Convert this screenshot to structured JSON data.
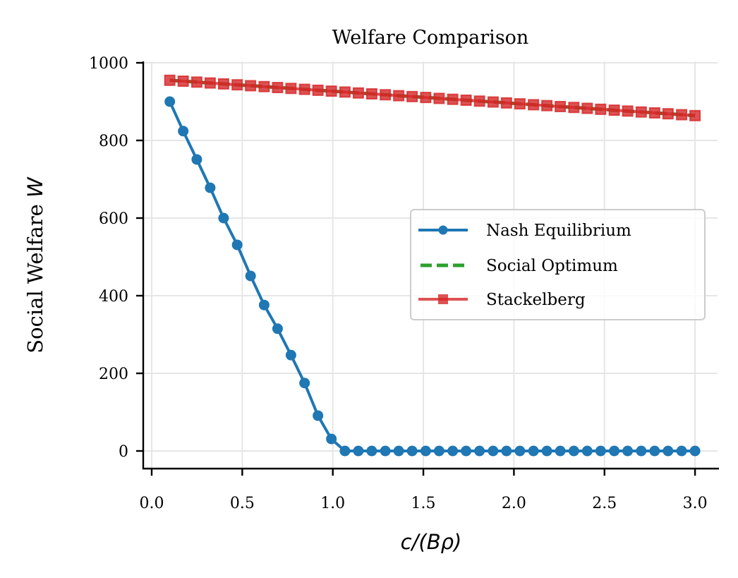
{
  "chart_data": {
    "type": "line",
    "title": "Welfare Comparison",
    "xlabel": "c/(Bρ)",
    "ylabel_prefix": "Social Welfare ",
    "ylabel_var": "W",
    "xlim": [
      -0.03,
      3.15
    ],
    "ylim": [
      -45,
      1000
    ],
    "xticks": [
      0.0,
      0.5,
      1.0,
      1.5,
      2.0,
      2.5,
      3.0
    ],
    "xtick_labels": [
      "0.0",
      "0.5",
      "1.0",
      "1.5",
      "2.0",
      "2.5",
      "3.0"
    ],
    "yticks": [
      0,
      200,
      400,
      600,
      800,
      1000
    ],
    "ytick_labels": [
      "0",
      "200",
      "400",
      "600",
      "800",
      "1000"
    ],
    "grid": true,
    "legend_position": "center-right",
    "x": [
      0.1,
      0.174,
      0.249,
      0.323,
      0.397,
      0.472,
      0.546,
      0.621,
      0.695,
      0.769,
      0.844,
      0.918,
      0.992,
      1.067,
      1.141,
      1.215,
      1.29,
      1.364,
      1.438,
      1.513,
      1.587,
      1.662,
      1.736,
      1.81,
      1.885,
      1.959,
      2.033,
      2.108,
      2.182,
      2.256,
      2.331,
      2.405,
      2.479,
      2.554,
      2.628,
      2.703,
      2.777,
      2.851,
      2.926,
      3.0
    ],
    "series": [
      {
        "name": "Nash Equilibrium",
        "color": "#1f77b4",
        "style": "solid",
        "marker": "circle",
        "values": [
          900,
          824,
          751,
          678,
          600,
          531,
          451,
          376,
          315,
          247,
          175,
          91,
          31,
          0,
          0,
          0,
          0,
          0,
          0,
          0,
          0,
          0,
          0,
          0,
          0,
          0,
          0,
          0,
          0,
          0,
          0,
          0,
          0,
          0,
          0,
          0,
          0,
          0,
          0,
          0
        ]
      },
      {
        "name": "Social Optimum",
        "color": "#2ca02c",
        "style": "dashed",
        "marker": "none",
        "values": [
          955,
          952.7,
          950.3,
          948,
          945.7,
          943.3,
          941,
          938.7,
          936.3,
          934,
          931.7,
          929.3,
          927,
          924.7,
          922.3,
          920,
          917.7,
          915.3,
          913,
          910.7,
          908.3,
          906,
          903.7,
          901.3,
          899,
          896.7,
          894.3,
          892,
          889.7,
          887.3,
          885,
          882.7,
          880.3,
          878,
          875.7,
          873.3,
          871,
          868.7,
          866.3,
          864
        ]
      },
      {
        "name": "Stackelberg",
        "color": "#d62728",
        "style": "solid",
        "marker": "square",
        "values": [
          955,
          952.7,
          950.3,
          948,
          945.7,
          943.3,
          941,
          938.7,
          936.3,
          934,
          931.7,
          929.3,
          927,
          924.7,
          922.3,
          920,
          917.7,
          915.3,
          913,
          910.7,
          908.3,
          906,
          903.7,
          901.3,
          899,
          896.7,
          894.3,
          892,
          889.7,
          887.3,
          885,
          882.7,
          880.3,
          878,
          875.7,
          873.3,
          871,
          868.7,
          866.3,
          864
        ]
      }
    ]
  }
}
